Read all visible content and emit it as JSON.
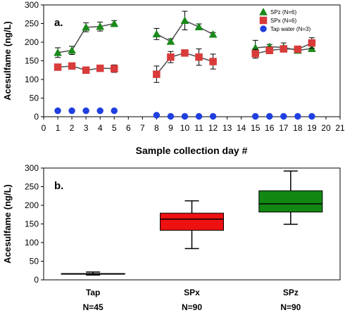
{
  "chart_data": [
    {
      "type": "line",
      "panel_label": "a.",
      "xlabel": "Sample collection day #",
      "ylabel": "Acesulfame (ng/L)",
      "xlim": [
        0,
        21
      ],
      "ylim": [
        0,
        300
      ],
      "x_ticks": [
        "0",
        "1",
        "2",
        "3",
        "4",
        "5",
        "6",
        "7",
        "8",
        "9",
        "10",
        "11",
        "12",
        "13",
        "14",
        "15",
        "16",
        "17",
        "18",
        "19",
        "20",
        "21"
      ],
      "y_ticks": [
        "0",
        "50",
        "100",
        "150",
        "200",
        "250",
        "300"
      ],
      "legend_position": "top-right",
      "series": [
        {
          "name": "SPz (N=6)",
          "color": "#1a8a1a",
          "marker": "triangle",
          "segments": [
            [
              {
                "x": 1,
                "y": 172,
                "err": 13
              },
              {
                "x": 2,
                "y": 178,
                "err": 11
              },
              {
                "x": 3,
                "y": 240,
                "err": 12
              },
              {
                "x": 4,
                "y": 242,
                "err": 12
              },
              {
                "x": 5,
                "y": 250,
                "err": 8
              }
            ],
            [
              {
                "x": 8,
                "y": 222,
                "err": 15
              },
              {
                "x": 9,
                "y": 202,
                "err": 7
              },
              {
                "x": 10,
                "y": 258,
                "err": 25
              },
              {
                "x": 11,
                "y": 241,
                "err": 8
              },
              {
                "x": 12,
                "y": 221,
                "err": 5
              }
            ],
            [
              {
                "x": 15,
                "y": 185,
                "err": 20
              },
              {
                "x": 16,
                "y": 188,
                "err": 6
              },
              {
                "x": 17,
                "y": 186,
                "err": 12
              },
              {
                "x": 18,
                "y": 178,
                "err": 6
              },
              {
                "x": 19,
                "y": 183,
                "err": 8
              }
            ]
          ]
        },
        {
          "name": "SPx (N=6)",
          "color": "#d93a3a",
          "marker": "square",
          "segments": [
            [
              {
                "x": 1,
                "y": 133,
                "err": 6
              },
              {
                "x": 2,
                "y": 136,
                "err": 5
              },
              {
                "x": 3,
                "y": 125,
                "err": 5
              },
              {
                "x": 4,
                "y": 130,
                "err": 6
              },
              {
                "x": 5,
                "y": 129,
                "err": 10
              }
            ],
            [
              {
                "x": 8,
                "y": 114,
                "err": 22
              },
              {
                "x": 9,
                "y": 160,
                "err": 15
              },
              {
                "x": 10,
                "y": 171,
                "err": 6
              },
              {
                "x": 11,
                "y": 160,
                "err": 22
              },
              {
                "x": 12,
                "y": 148,
                "err": 20
              }
            ],
            [
              {
                "x": 15,
                "y": 169,
                "err": 12
              },
              {
                "x": 16,
                "y": 178,
                "err": 9
              },
              {
                "x": 17,
                "y": 182,
                "err": 7
              },
              {
                "x": 18,
                "y": 181,
                "err": 5
              },
              {
                "x": 19,
                "y": 198,
                "err": 14
              }
            ]
          ]
        },
        {
          "name": "Tap water (N=3)",
          "color": "#1f3fe0",
          "marker": "circle",
          "segments": [
            [
              {
                "x": 1,
                "y": 16
              },
              {
                "x": 2,
                "y": 16
              },
              {
                "x": 3,
                "y": 16
              },
              {
                "x": 4,
                "y": 16
              },
              {
                "x": 5,
                "y": 16
              }
            ],
            [
              {
                "x": 8,
                "y": 4
              },
              {
                "x": 9,
                "y": 1
              },
              {
                "x": 10,
                "y": 1
              },
              {
                "x": 11,
                "y": 1
              },
              {
                "x": 12,
                "y": 1
              }
            ],
            [
              {
                "x": 15,
                "y": 1
              },
              {
                "x": 16,
                "y": 1
              },
              {
                "x": 17,
                "y": 1
              },
              {
                "x": 18,
                "y": 1
              },
              {
                "x": 19,
                "y": 1
              }
            ]
          ]
        }
      ]
    },
    {
      "type": "box",
      "panel_label": "b.",
      "ylabel": "Acesulfame (ng/L)",
      "ylim": [
        0,
        300
      ],
      "y_ticks": [
        "0",
        "50",
        "100",
        "150",
        "200",
        "250",
        "300"
      ],
      "boxes": [
        {
          "category": "Tap",
          "n_label": "N=45",
          "min": 13,
          "q1": 15,
          "median": 16,
          "q3": 17,
          "max": 21,
          "color": "#ffffff"
        },
        {
          "category": "SPx",
          "n_label": "N=90",
          "min": 84,
          "q1": 133,
          "median": 163,
          "q3": 179,
          "max": 212,
          "color": "#ee1111"
        },
        {
          "category": "SPz",
          "n_label": "N=90",
          "min": 149,
          "q1": 182,
          "median": 204,
          "q3": 239,
          "max": 292,
          "color": "#128812"
        }
      ]
    }
  ]
}
